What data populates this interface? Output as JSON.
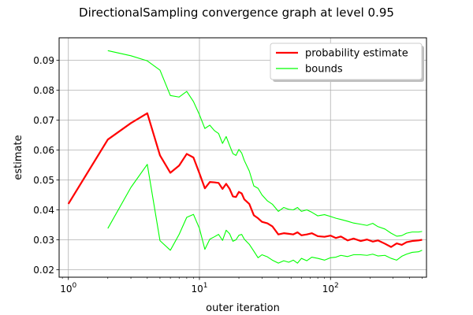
{
  "chart_data": {
    "type": "line",
    "title": "DirectionalSampling convergence graph at level 0.95",
    "xlabel": "outer iteration",
    "ylabel": "estimate",
    "x_scale": "log",
    "xlim": [
      0.85,
      540
    ],
    "ylim": [
      0.0175,
      0.0975
    ],
    "x_ticks": [
      {
        "value": 1,
        "base": "10",
        "exp": "0"
      },
      {
        "value": 10,
        "base": "10",
        "exp": "1"
      },
      {
        "value": 100,
        "base": "10",
        "exp": "2"
      }
    ],
    "y_ticks": [
      {
        "value": 0.02,
        "label": "0.02"
      },
      {
        "value": 0.03,
        "label": "0.03"
      },
      {
        "value": 0.04,
        "label": "0.04"
      },
      {
        "value": 0.05,
        "label": "0.05"
      },
      {
        "value": 0.06,
        "label": "0.06"
      },
      {
        "value": 0.07,
        "label": "0.07"
      },
      {
        "value": 0.08,
        "label": "0.08"
      },
      {
        "value": 0.09,
        "label": "0.09"
      }
    ],
    "grid": true,
    "legend_position": "top-right",
    "series": [
      {
        "name": "probability estimate",
        "color": "#ff0000",
        "x": [
          1,
          2,
          3,
          4,
          5,
          6,
          7,
          8,
          9,
          10,
          11,
          12,
          13,
          14,
          15,
          16,
          17,
          18,
          19,
          20,
          21,
          22,
          24,
          26,
          28,
          30,
          33,
          36,
          40,
          44,
          48,
          52,
          56,
          60,
          66,
          72,
          80,
          90,
          100,
          110,
          120,
          135,
          150,
          170,
          190,
          210,
          230,
          260,
          290,
          320,
          350,
          380,
          420,
          470,
          500
        ],
        "y": [
          0.042,
          0.0635,
          0.069,
          0.0723,
          0.0582,
          0.0524,
          0.0548,
          0.0587,
          0.0575,
          0.0522,
          0.0472,
          0.0493,
          0.0492,
          0.049,
          0.047,
          0.0487,
          0.047,
          0.0445,
          0.0443,
          0.046,
          0.0455,
          0.0435,
          0.042,
          0.0382,
          0.0372,
          0.036,
          0.0355,
          0.0345,
          0.0318,
          0.0322,
          0.032,
          0.0318,
          0.0325,
          0.0315,
          0.0318,
          0.0322,
          0.0312,
          0.031,
          0.0314,
          0.0306,
          0.0311,
          0.0298,
          0.0304,
          0.0296,
          0.0301,
          0.0294,
          0.0298,
          0.0287,
          0.0276,
          0.0288,
          0.0283,
          0.0292,
          0.0296,
          0.0298,
          0.03
        ]
      },
      {
        "name": "bounds",
        "color": "#00ff00",
        "x": [
          2,
          3,
          4,
          5,
          6,
          7,
          8,
          9,
          10,
          11,
          12,
          13,
          14,
          15,
          16,
          17,
          18,
          19,
          20,
          21,
          22,
          24,
          26,
          28,
          30,
          33,
          36,
          40,
          44,
          48,
          52,
          56,
          60,
          66,
          72,
          80,
          90,
          100,
          110,
          120,
          135,
          150,
          170,
          190,
          210,
          230,
          260,
          290,
          320,
          350,
          380,
          420,
          470,
          500
        ],
        "y": [
          0.0932,
          0.0915,
          0.0898,
          0.0867,
          0.0782,
          0.0777,
          0.0796,
          0.0762,
          0.0718,
          0.0672,
          0.0683,
          0.0665,
          0.0655,
          0.0622,
          0.0645,
          0.0615,
          0.0588,
          0.0582,
          0.0602,
          0.059,
          0.0565,
          0.053,
          0.048,
          0.0472,
          0.045,
          0.043,
          0.0419,
          0.0395,
          0.0408,
          0.0402,
          0.04,
          0.0408,
          0.0395,
          0.04,
          0.0392,
          0.038,
          0.0384,
          0.0378,
          0.0372,
          0.0368,
          0.0362,
          0.0356,
          0.0352,
          0.0348,
          0.0355,
          0.0344,
          0.0336,
          0.0322,
          0.0312,
          0.0314,
          0.0322,
          0.0326,
          0.0326,
          0.0328
        ]
      },
      {
        "name": "",
        "color": "#00ff00",
        "x": [
          2,
          3,
          4,
          5,
          6,
          7,
          8,
          9,
          10,
          11,
          12,
          13,
          14,
          15,
          16,
          17,
          18,
          19,
          20,
          21,
          22,
          24,
          26,
          28,
          30,
          33,
          36,
          40,
          44,
          48,
          52,
          56,
          60,
          66,
          72,
          80,
          90,
          100,
          110,
          120,
          135,
          150,
          170,
          190,
          210,
          230,
          260,
          290,
          320,
          350,
          380,
          420,
          470,
          500
        ],
        "y": [
          0.0338,
          0.0475,
          0.0552,
          0.0297,
          0.0265,
          0.0318,
          0.0375,
          0.0385,
          0.0338,
          0.0268,
          0.0302,
          0.031,
          0.0318,
          0.0298,
          0.0332,
          0.032,
          0.0295,
          0.03,
          0.0315,
          0.0318,
          0.0302,
          0.0285,
          0.0262,
          0.024,
          0.025,
          0.0243,
          0.0232,
          0.0222,
          0.023,
          0.0225,
          0.0232,
          0.0222,
          0.0238,
          0.023,
          0.0242,
          0.0238,
          0.0232,
          0.024,
          0.0242,
          0.0248,
          0.0244,
          0.025,
          0.025,
          0.0248,
          0.0252,
          0.0246,
          0.0248,
          0.0238,
          0.0232,
          0.0245,
          0.0252,
          0.0258,
          0.026,
          0.0265
        ]
      }
    ]
  }
}
